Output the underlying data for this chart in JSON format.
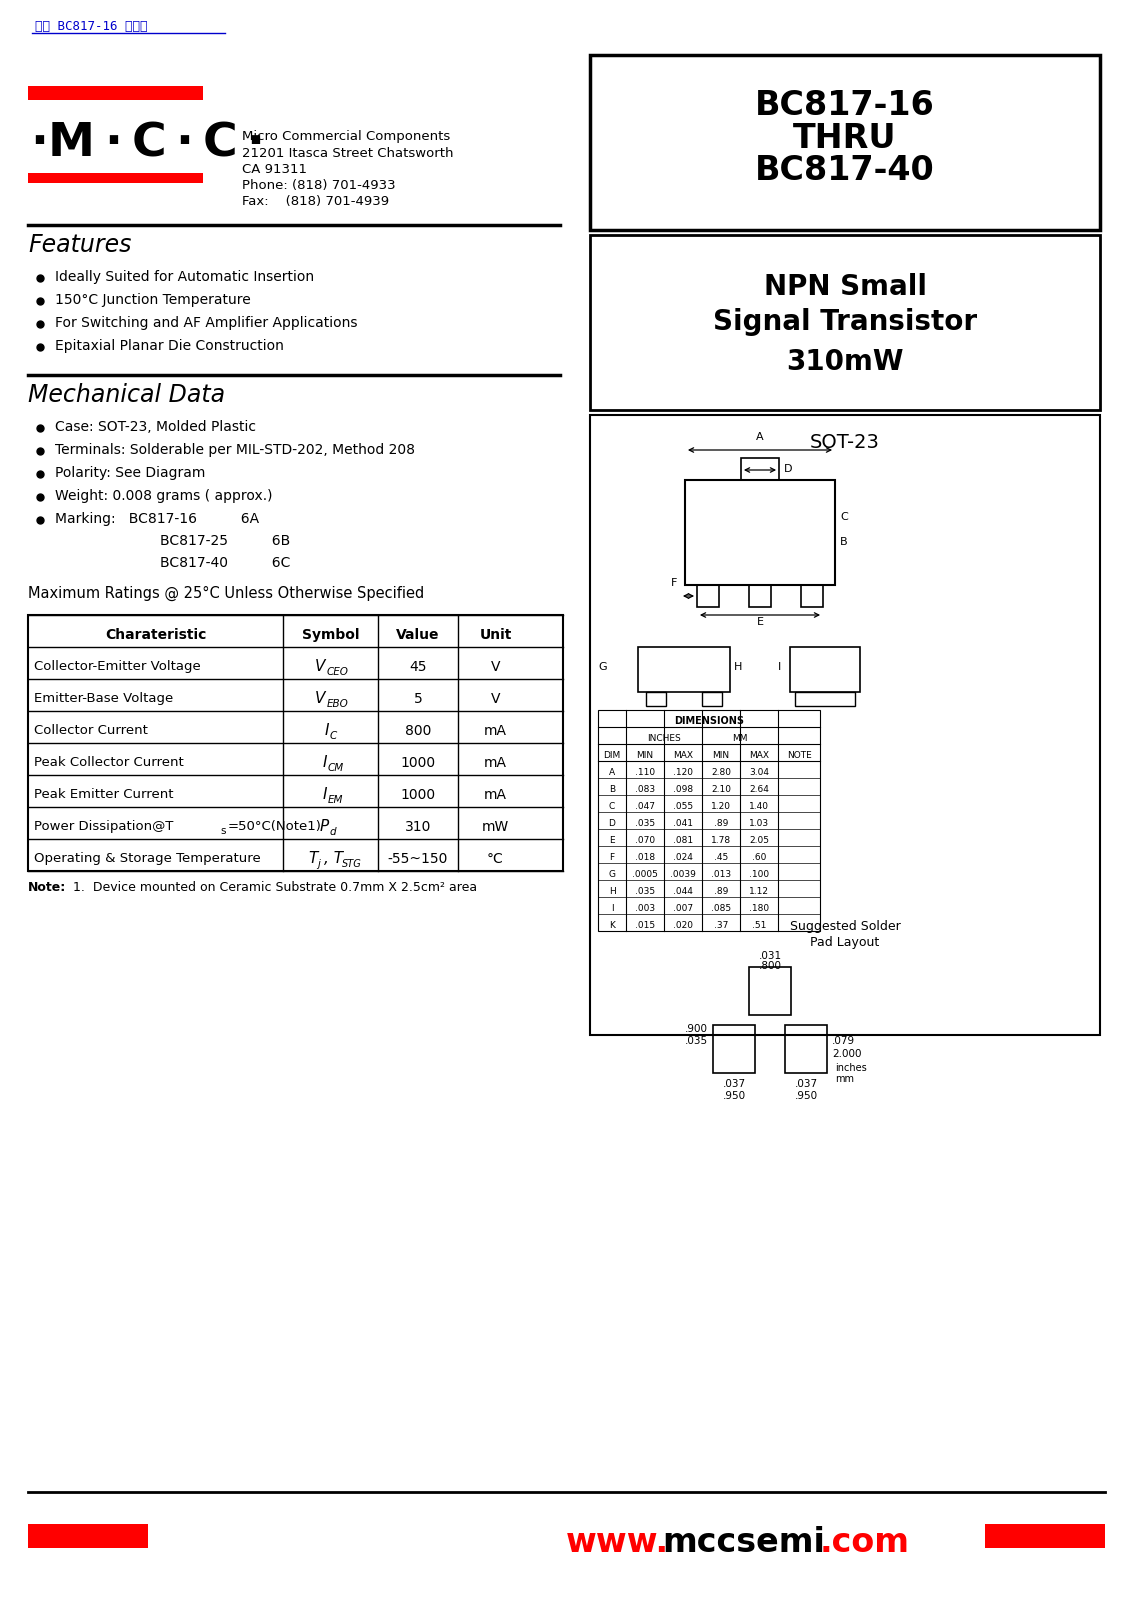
{
  "title_link": "BC817-16",
  "company": "Micro Commercial Components",
  "address1": "21201 Itasca Street Chatsworth",
  "address2": "CA 91311",
  "phone": "Phone: (818) 701-4933",
  "fax": "Fax:    (818) 701-4939",
  "features": [
    "Ideally Suited for Automatic Insertion",
    "150°C Junction Temperature",
    "For Switching and AF Amplifier Applications",
    "Epitaxial Planar Die Construction"
  ],
  "mech_items": [
    "Case: SOT-23, Molded Plastic",
    "Terminals: Solderable per MIL-STD-202, Method 208",
    "Polarity: See Diagram",
    "Weight: 0.008 grams ( approx.)"
  ],
  "table_headers": [
    "Charateristic",
    "Symbol",
    "Value",
    "Unit"
  ],
  "table_rows": [
    [
      "Collector-Emitter Voltage",
      "V_CEO",
      "45",
      "V"
    ],
    [
      "Emitter-Base Voltage",
      "V_EBO",
      "5",
      "V"
    ],
    [
      "Collector Current",
      "I_C",
      "800",
      "mA"
    ],
    [
      "Peak Collector Current",
      "I_CM",
      "1000",
      "mA"
    ],
    [
      "Peak Emitter Current",
      "I_EM",
      "1000",
      "mA"
    ],
    [
      "Power Dissipation@Ts=50°C(Note1)",
      "P_d",
      "310",
      "mW"
    ],
    [
      "Operating & Storage Temperature",
      "T_j_TSTG",
      "-55~150",
      "°C"
    ]
  ],
  "dim_headers": [
    "DIM",
    "MIN",
    "MAX",
    "MIN",
    "MAX",
    "NOTE"
  ],
  "dim_rows": [
    [
      "A",
      ".110",
      ".120",
      "2.80",
      "3.04",
      ""
    ],
    [
      "B",
      ".083",
      ".098",
      "2.10",
      "2.64",
      ""
    ],
    [
      "C",
      ".047",
      ".055",
      "1.20",
      "1.40",
      ""
    ],
    [
      "D",
      ".035",
      ".041",
      ".89",
      "1.03",
      ""
    ],
    [
      "E",
      ".070",
      ".081",
      "1.78",
      "2.05",
      ""
    ],
    [
      "F",
      ".018",
      ".024",
      ".45",
      ".60",
      ""
    ],
    [
      "G",
      ".0005",
      ".0039",
      ".013",
      ".100",
      ""
    ],
    [
      "H",
      ".035",
      ".044",
      ".89",
      "1.12",
      ""
    ],
    [
      "I",
      ".003",
      ".007",
      ".085",
      ".180",
      ""
    ],
    [
      "K",
      ".015",
      ".020",
      ".37",
      ".51",
      ""
    ]
  ],
  "bg_color": "#ffffff",
  "red_color": "#ff0000",
  "blue_color": "#0000cc",
  "black_color": "#000000"
}
